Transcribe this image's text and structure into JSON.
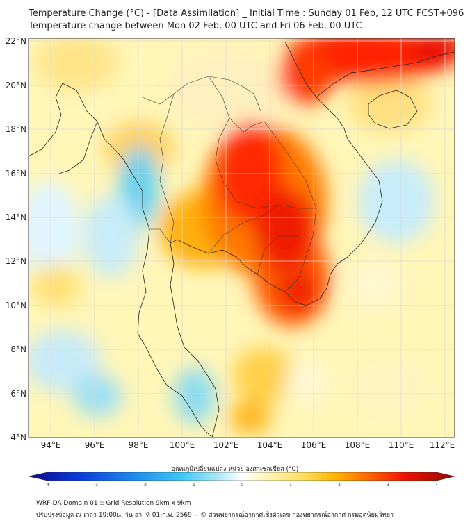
{
  "title": {
    "line1": "Temperature Change (°C) - [Data Assimilation] _ Initial Time : Sunday 01 Feb, 12 UTC FCST+096",
    "line2": "Temperature change between Mon 02 Feb, 00 UTC and Fri 06 Feb, 00 UTC"
  },
  "map": {
    "lat_labels": [
      "22°N",
      "20°N",
      "18°N",
      "16°N",
      "14°N",
      "12°N",
      "10°N",
      "8°N",
      "6°N",
      "4°N"
    ],
    "lon_labels": [
      "94°E",
      "96°E",
      "98°E",
      "100°E",
      "102°E",
      "104°E",
      "106°E",
      "108°E",
      "110°E",
      "112°E"
    ],
    "lat_range": [
      4,
      22
    ],
    "lon_range": [
      93,
      112.3
    ]
  },
  "colorbar": {
    "title": "อุณหภูมิเปลี่ยนแปลง หน่วย องศาเซลเซียส (°C)",
    "ticks": [
      "-4",
      "-3",
      "-2",
      "-1",
      "0",
      "1",
      "2",
      "3",
      "4"
    ],
    "range": [
      -4,
      4
    ]
  },
  "footer": {
    "line1": "WRF-DA Domain 01 :: Grid Resolution 9km x 9km",
    "line2": "ปรับปรุงข้อมูล ณ เวลา 19:00น. วัน อา. ที่ 01 ก.พ. 2569 -- © ส่วนพยากรณ์อากาศเชิงตัวเลข กองพยากรณ์อากาศ กรมอุตุนิยมวิทยา"
  },
  "colors": {
    "cold": "#00b4f0",
    "neutral": "#fffde0",
    "warm": "#ffc800",
    "hot": "#ff1a00"
  }
}
